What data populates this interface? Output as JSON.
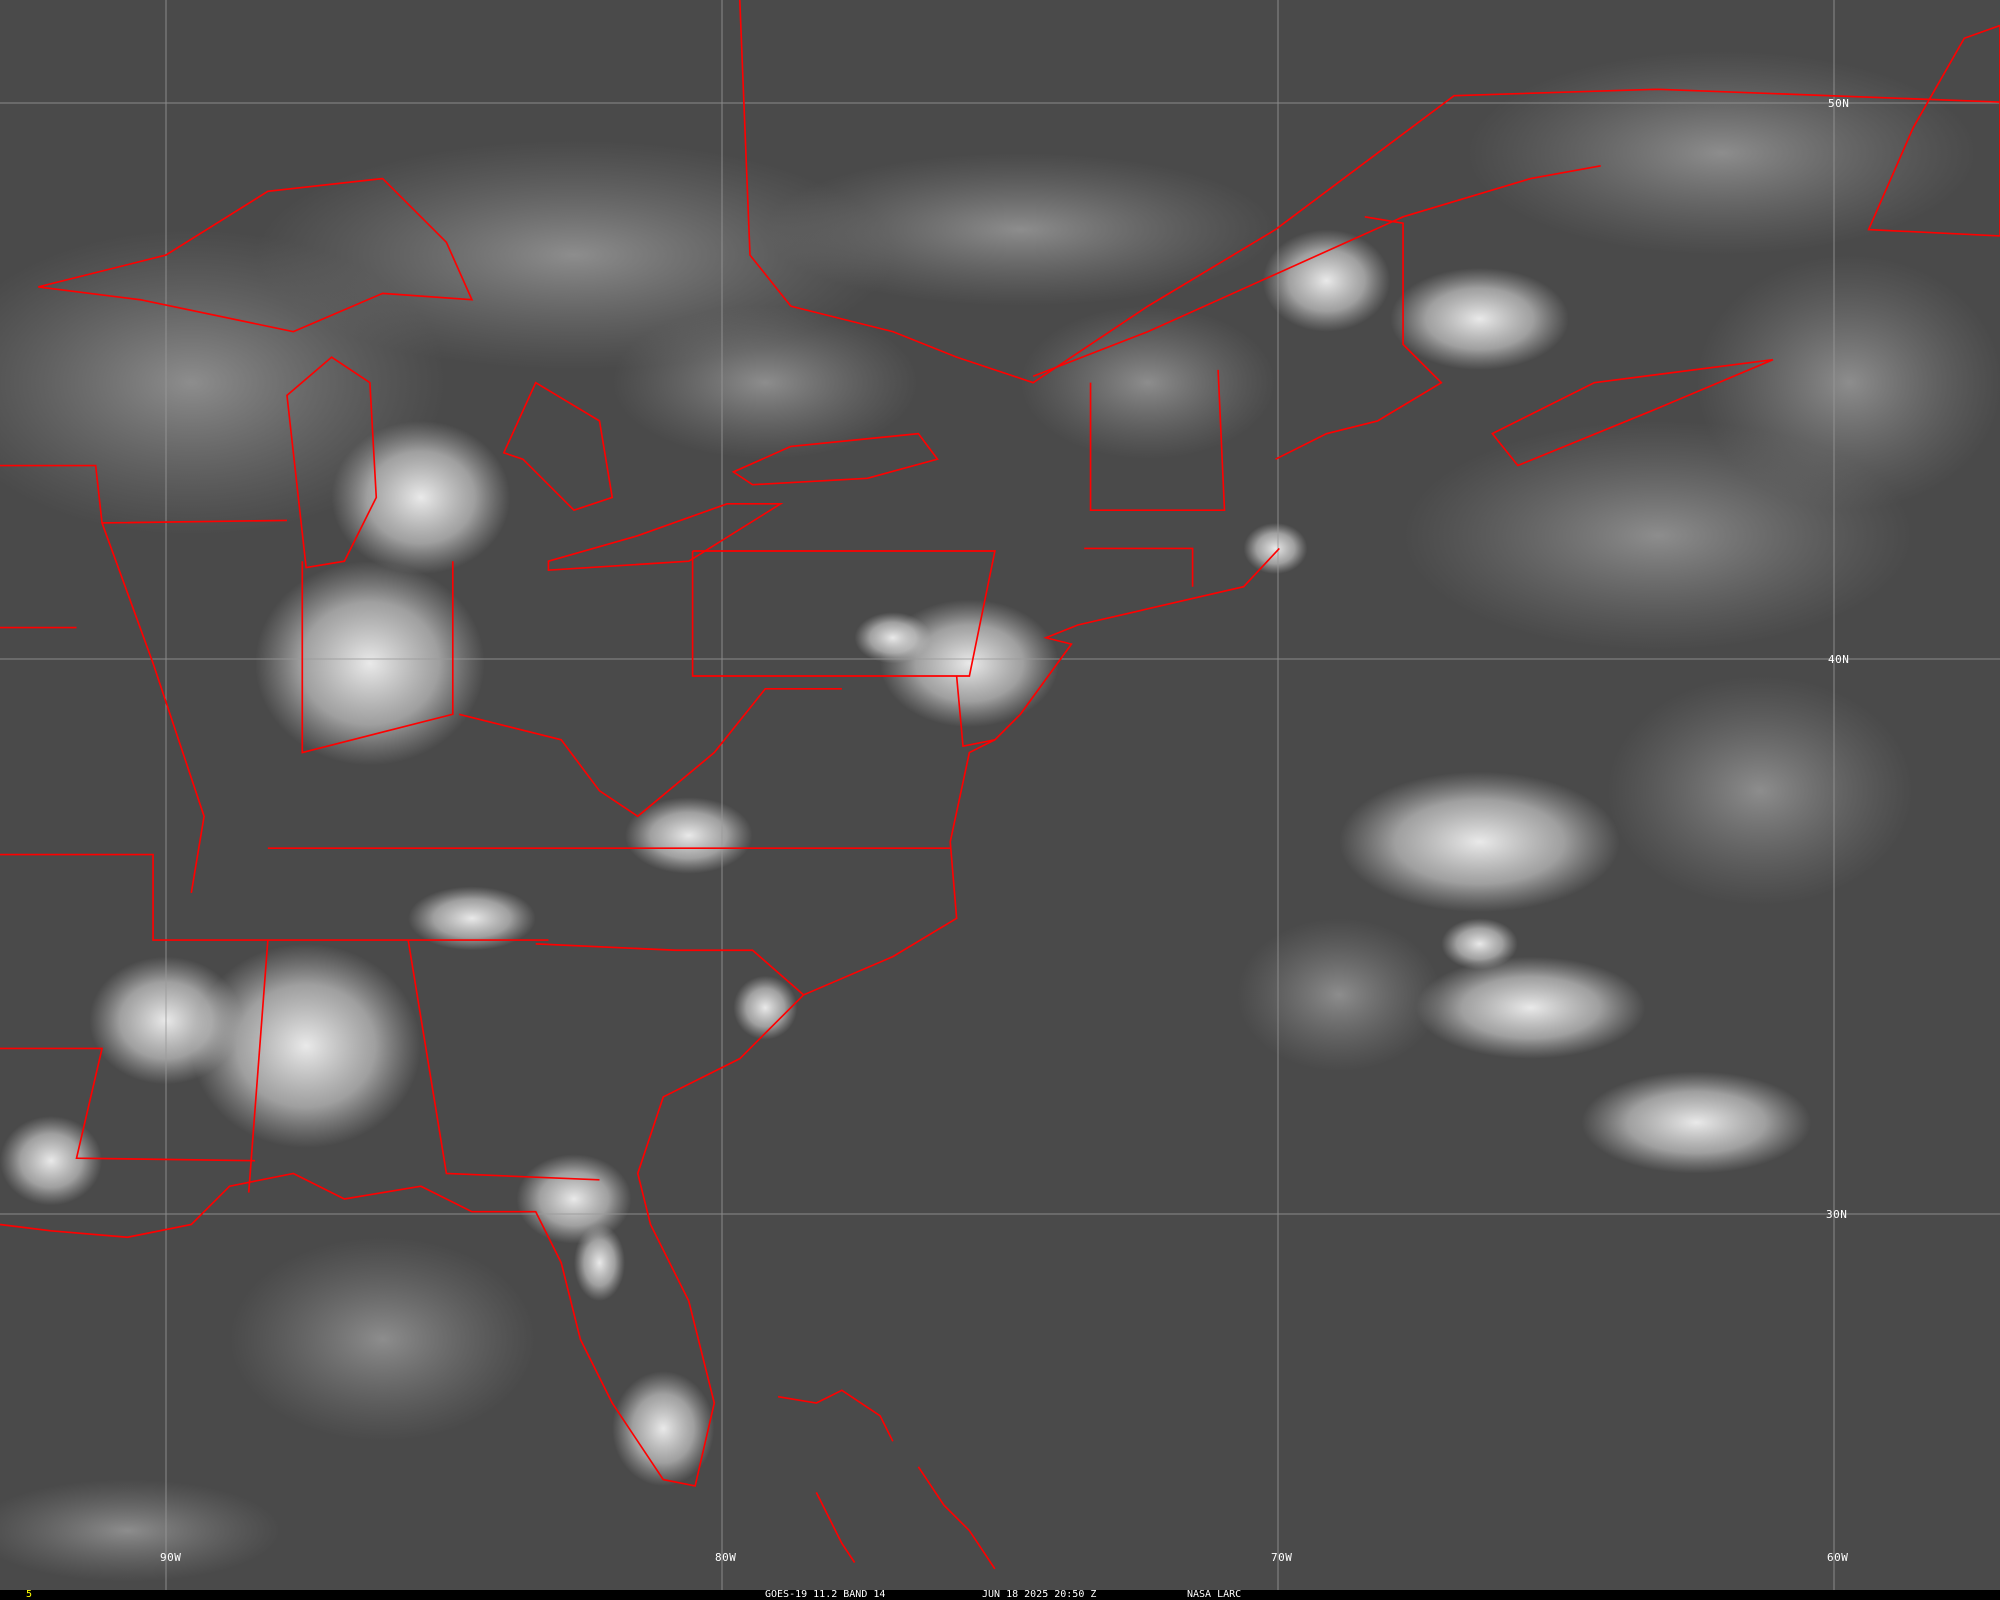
{
  "image": {
    "satellite": "GOES-19",
    "product": "GOES-19 11.2 BAND 14",
    "datetime": "JUN 18 2025 20:50 Z",
    "credit": "NASA LARC",
    "frame_number": "5",
    "boundary_color": "#ff0000",
    "grid_color": "#9a9a9a",
    "frame_number_color": "#ffff00"
  },
  "grid": {
    "longitude_labels": [
      "90W",
      "80W",
      "70W",
      "60W"
    ],
    "latitude_labels": [
      "50N",
      "40N",
      "30N"
    ]
  }
}
